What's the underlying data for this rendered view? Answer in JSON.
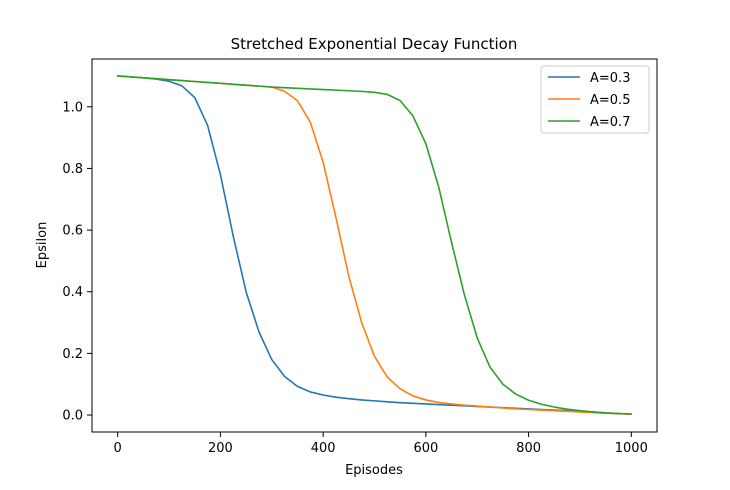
{
  "chart_data": {
    "type": "line",
    "title": "Stretched Exponential Decay Function",
    "xlabel": "Episodes",
    "ylabel": "Epsilon",
    "xlim": [
      -50,
      1050
    ],
    "ylim": [
      -0.055,
      1.155
    ],
    "xticks": [
      0,
      200,
      400,
      600,
      800,
      1000
    ],
    "xtick_labels": [
      "0",
      "200",
      "400",
      "600",
      "800",
      "1000"
    ],
    "yticks": [
      0.0,
      0.2,
      0.4,
      0.6,
      0.8,
      1.0
    ],
    "ytick_labels": [
      "0.0",
      "0.2",
      "0.4",
      "0.6",
      "0.8",
      "1.0"
    ],
    "grid": false,
    "legend_position": "top-right",
    "x": [
      0,
      25,
      50,
      75,
      100,
      125,
      150,
      175,
      200,
      225,
      250,
      275,
      300,
      325,
      350,
      375,
      400,
      425,
      450,
      475,
      500,
      525,
      550,
      575,
      600,
      625,
      650,
      675,
      700,
      725,
      750,
      775,
      800,
      825,
      850,
      875,
      900,
      925,
      950,
      975,
      1000
    ],
    "series": [
      {
        "name": "A=0.3",
        "color": "#1f77b4",
        "values": [
          1.1,
          1.097,
          1.094,
          1.09,
          1.083,
          1.068,
          1.03,
          0.94,
          0.78,
          0.58,
          0.4,
          0.27,
          0.18,
          0.125,
          0.093,
          0.075,
          0.065,
          0.058,
          0.053,
          0.049,
          0.046,
          0.043,
          0.04,
          0.038,
          0.036,
          0.034,
          0.032,
          0.03,
          0.028,
          0.026,
          0.024,
          0.022,
          0.02,
          0.018,
          0.016,
          0.014,
          0.012,
          0.01,
          0.007,
          0.005,
          0.003
        ]
      },
      {
        "name": "A=0.5",
        "color": "#ff7f0e",
        "values": [
          1.1,
          1.097,
          1.094,
          1.091,
          1.088,
          1.085,
          1.082,
          1.079,
          1.076,
          1.073,
          1.07,
          1.067,
          1.064,
          1.05,
          1.02,
          0.95,
          0.82,
          0.64,
          0.45,
          0.3,
          0.19,
          0.123,
          0.085,
          0.062,
          0.049,
          0.041,
          0.036,
          0.032,
          0.029,
          0.026,
          0.023,
          0.02,
          0.018,
          0.016,
          0.014,
          0.012,
          0.01,
          0.008,
          0.006,
          0.004,
          0.003
        ]
      },
      {
        "name": "A=0.7",
        "color": "#2ca02c",
        "values": [
          1.1,
          1.097,
          1.094,
          1.091,
          1.088,
          1.085,
          1.082,
          1.079,
          1.076,
          1.073,
          1.07,
          1.067,
          1.064,
          1.062,
          1.06,
          1.058,
          1.056,
          1.054,
          1.052,
          1.05,
          1.047,
          1.04,
          1.02,
          0.97,
          0.88,
          0.74,
          0.56,
          0.39,
          0.25,
          0.155,
          0.1,
          0.068,
          0.048,
          0.035,
          0.026,
          0.019,
          0.014,
          0.01,
          0.007,
          0.005,
          0.003
        ]
      }
    ]
  }
}
